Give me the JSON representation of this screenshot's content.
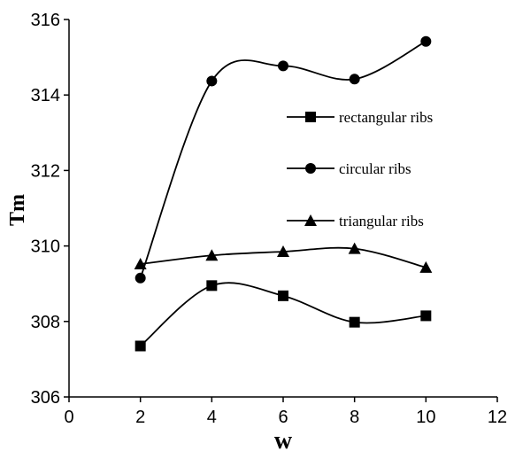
{
  "chart_data": {
    "type": "line",
    "title": "",
    "xlabel": "w",
    "ylabel": "Tm",
    "xlim": [
      0,
      12
    ],
    "ylim": [
      306,
      316
    ],
    "x_ticks": [
      0,
      2,
      4,
      6,
      8,
      10,
      12
    ],
    "y_ticks": [
      306,
      308,
      310,
      312,
      314,
      316
    ],
    "smooth": true,
    "grid": false,
    "legend_position": "right",
    "series": [
      {
        "name": "rectangular ribs",
        "marker": "square",
        "color": "#000000",
        "x": [
          2,
          4,
          6,
          8,
          10
        ],
        "y": [
          307.35,
          308.95,
          308.68,
          307.98,
          308.15
        ]
      },
      {
        "name": "circular ribs",
        "marker": "circle",
        "color": "#000000",
        "x": [
          2,
          4,
          6,
          8,
          10
        ],
        "y": [
          309.15,
          314.37,
          314.77,
          314.42,
          315.42
        ]
      },
      {
        "name": "triangular ribs",
        "marker": "triangle",
        "color": "#000000",
        "x": [
          2,
          4,
          6,
          8,
          10
        ],
        "y": [
          309.52,
          309.75,
          309.85,
          309.93,
          309.43
        ]
      }
    ]
  }
}
